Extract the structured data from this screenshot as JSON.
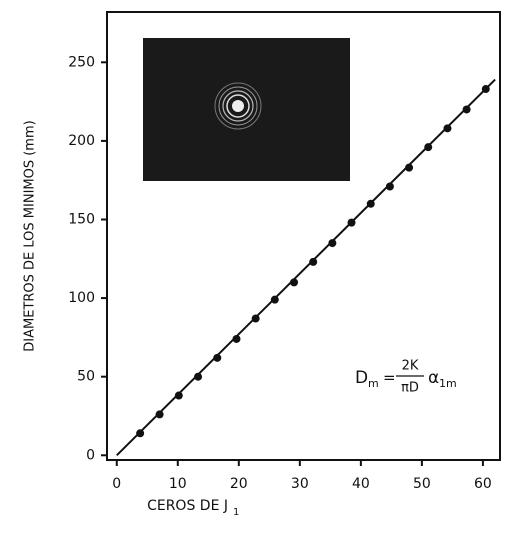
{
  "chart_data": {
    "type": "scatter",
    "x_label": "CEROS DE J",
    "x_label_sub": "1",
    "y_label": "DIAMETROS DE LOS MINIMOS (mm)",
    "x": [
      3.83,
      7.02,
      10.17,
      13.32,
      16.47,
      19.62,
      22.76,
      25.9,
      29.05,
      32.19,
      35.33,
      38.47,
      41.62,
      44.76,
      47.9,
      51.04,
      54.19,
      57.33,
      60.47
    ],
    "values": [
      14,
      26,
      38,
      50,
      62,
      74,
      87,
      99,
      110,
      123,
      135,
      148,
      160,
      171,
      183,
      196,
      208,
      220,
      233
    ],
    "color": "#111111",
    "fit": {
      "x": [
        0,
        62
      ],
      "y": [
        0,
        239
      ]
    },
    "xlim": [
      -1.6,
      62.8
    ],
    "ylim": [
      -3,
      282
    ],
    "xticks": [
      0,
      10,
      20,
      30,
      40,
      50,
      60
    ],
    "yticks": [
      0,
      50,
      100,
      150,
      200,
      250
    ],
    "annotation": {
      "lhs": "D",
      "lhs_sub": "m",
      "num": "2K",
      "den": "πD",
      "rhs": "α",
      "rhs_sub": "1m"
    }
  }
}
